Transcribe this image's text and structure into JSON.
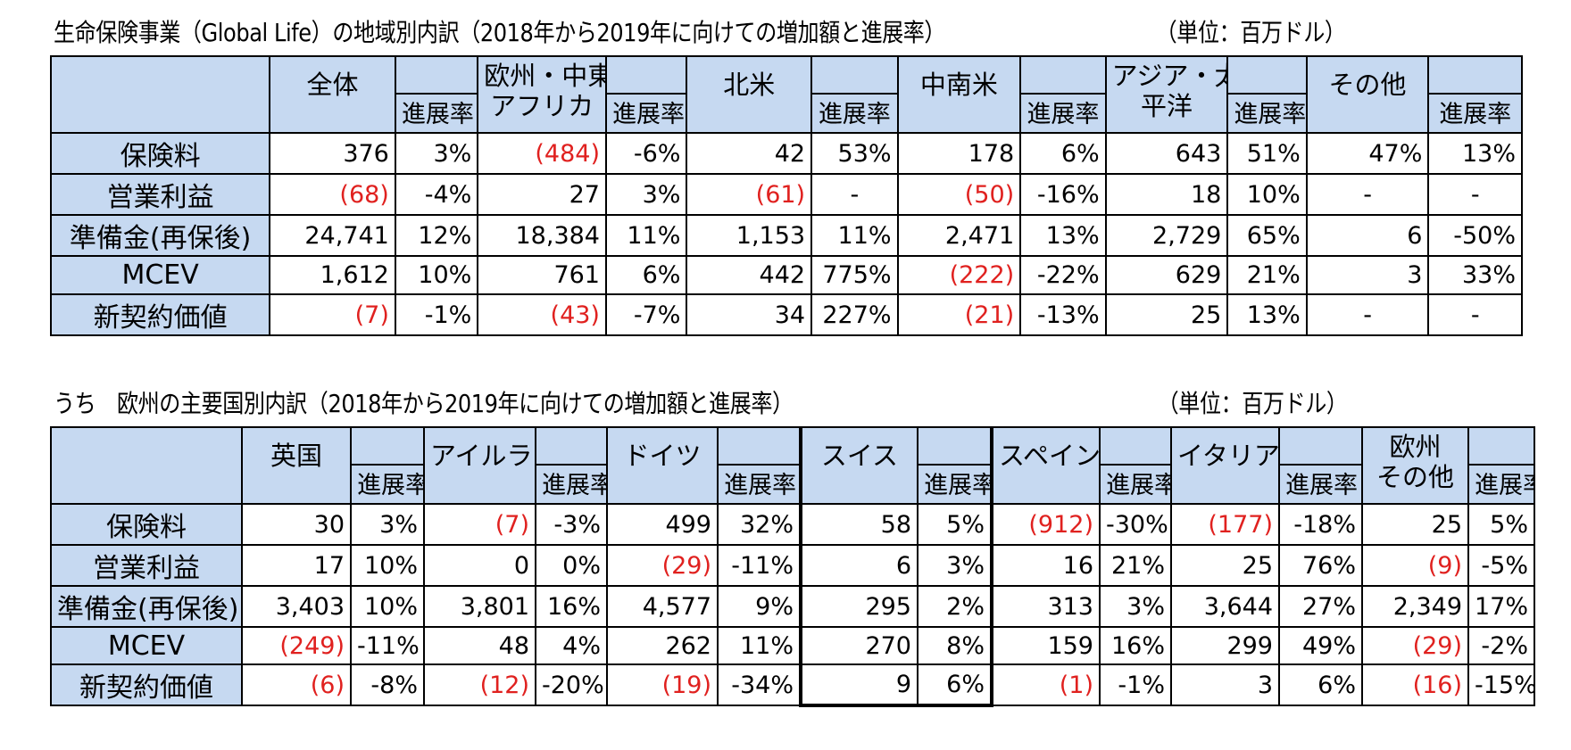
{
  "table1": {
    "title": "生命保険事業（Global Life）の地域別内訳（2018年から2019年に向けての増加額と進展率）",
    "unit": "（単位：百万ドル）",
    "header": {
      "regions": [
        "全体",
        "欧州・中東・\nアフリカ",
        "北米",
        "中南米",
        "アジア・太\n平洋",
        "その他"
      ],
      "region_line1": [
        "全体",
        "欧州・中東・",
        "北米",
        "中南米",
        "アジア・太",
        "その他"
      ],
      "region_line2": [
        "",
        "アフリカ",
        "",
        "",
        "平洋",
        ""
      ],
      "rate_label": "進展率"
    },
    "rows": [
      {
        "label": "保険料",
        "cells": [
          "376",
          "3%",
          "(484)",
          "-6%",
          "42",
          "53%",
          "178",
          "6%",
          "643",
          "51%",
          "47%",
          "13%"
        ]
      },
      {
        "label": "営業利益",
        "cells": [
          "(68)",
          "-4%",
          "27",
          "3%",
          "(61)",
          "-",
          "(50)",
          "-16%",
          "18",
          "10%",
          "-",
          "-"
        ]
      },
      {
        "label": "準備金(再保後)",
        "cells": [
          "24,741",
          "12%",
          "18,384",
          "11%",
          "1,153",
          "11%",
          "2,471",
          "13%",
          "2,729",
          "65%",
          "6",
          "-50%"
        ]
      },
      {
        "label": "MCEV",
        "cells": [
          "1,612",
          "10%",
          "761",
          "6%",
          "442",
          "775%",
          "(222)",
          "-22%",
          "629",
          "21%",
          "3",
          "33%"
        ]
      },
      {
        "label": "新契約価値",
        "cells": [
          "(7)",
          "-1%",
          "(43)",
          "-7%",
          "34",
          "227%",
          "(21)",
          "-13%",
          "25",
          "13%",
          "-",
          "-"
        ]
      }
    ]
  },
  "table2": {
    "title": "うち　欧州の主要国別内訳（2018年から2019年に向けての増加額と進展率）",
    "unit": "（単位：百万ドル）",
    "header": {
      "country_line1": [
        "英国",
        "アイルランド",
        "ドイツ",
        "スイス",
        "スペイン",
        "イタリア",
        "欧州"
      ],
      "country_line2": [
        "",
        "",
        "",
        "",
        "",
        "",
        "その他"
      ],
      "rate_label": "進展率"
    },
    "rows": [
      {
        "label": "保険料",
        "cells": [
          "30",
          "3%",
          "(7)",
          "-3%",
          "499",
          "32%",
          "58",
          "5%",
          "(912)",
          "-30%",
          "(177)",
          "-18%",
          "25",
          "5%"
        ]
      },
      {
        "label": "営業利益",
        "cells": [
          "17",
          "10%",
          "0",
          "0%",
          "(29)",
          "-11%",
          "6",
          "3%",
          "16",
          "21%",
          "25",
          "76%",
          "(9)",
          "-5%"
        ]
      },
      {
        "label": "準備金(再保後)",
        "cells": [
          "3,403",
          "10%",
          "3,801",
          "16%",
          "4,577",
          "9%",
          "295",
          "2%",
          "313",
          "3%",
          "3,644",
          "27%",
          "2,349",
          "17%"
        ]
      },
      {
        "label": "MCEV",
        "cells": [
          "(249)",
          "-11%",
          "48",
          "4%",
          "262",
          "11%",
          "270",
          "8%",
          "159",
          "16%",
          "299",
          "49%",
          "(29)",
          "-2%"
        ]
      },
      {
        "label": "新契約価値",
        "cells": [
          "(6)",
          "-8%",
          "(12)",
          "-20%",
          "(19)",
          "-34%",
          "9",
          "6%",
          "(1)",
          "-1%",
          "3",
          "6%",
          "(16)",
          "-15%"
        ]
      }
    ]
  },
  "colors": {
    "header_bg": "#c6d9f1",
    "negative": "#e0211f"
  }
}
